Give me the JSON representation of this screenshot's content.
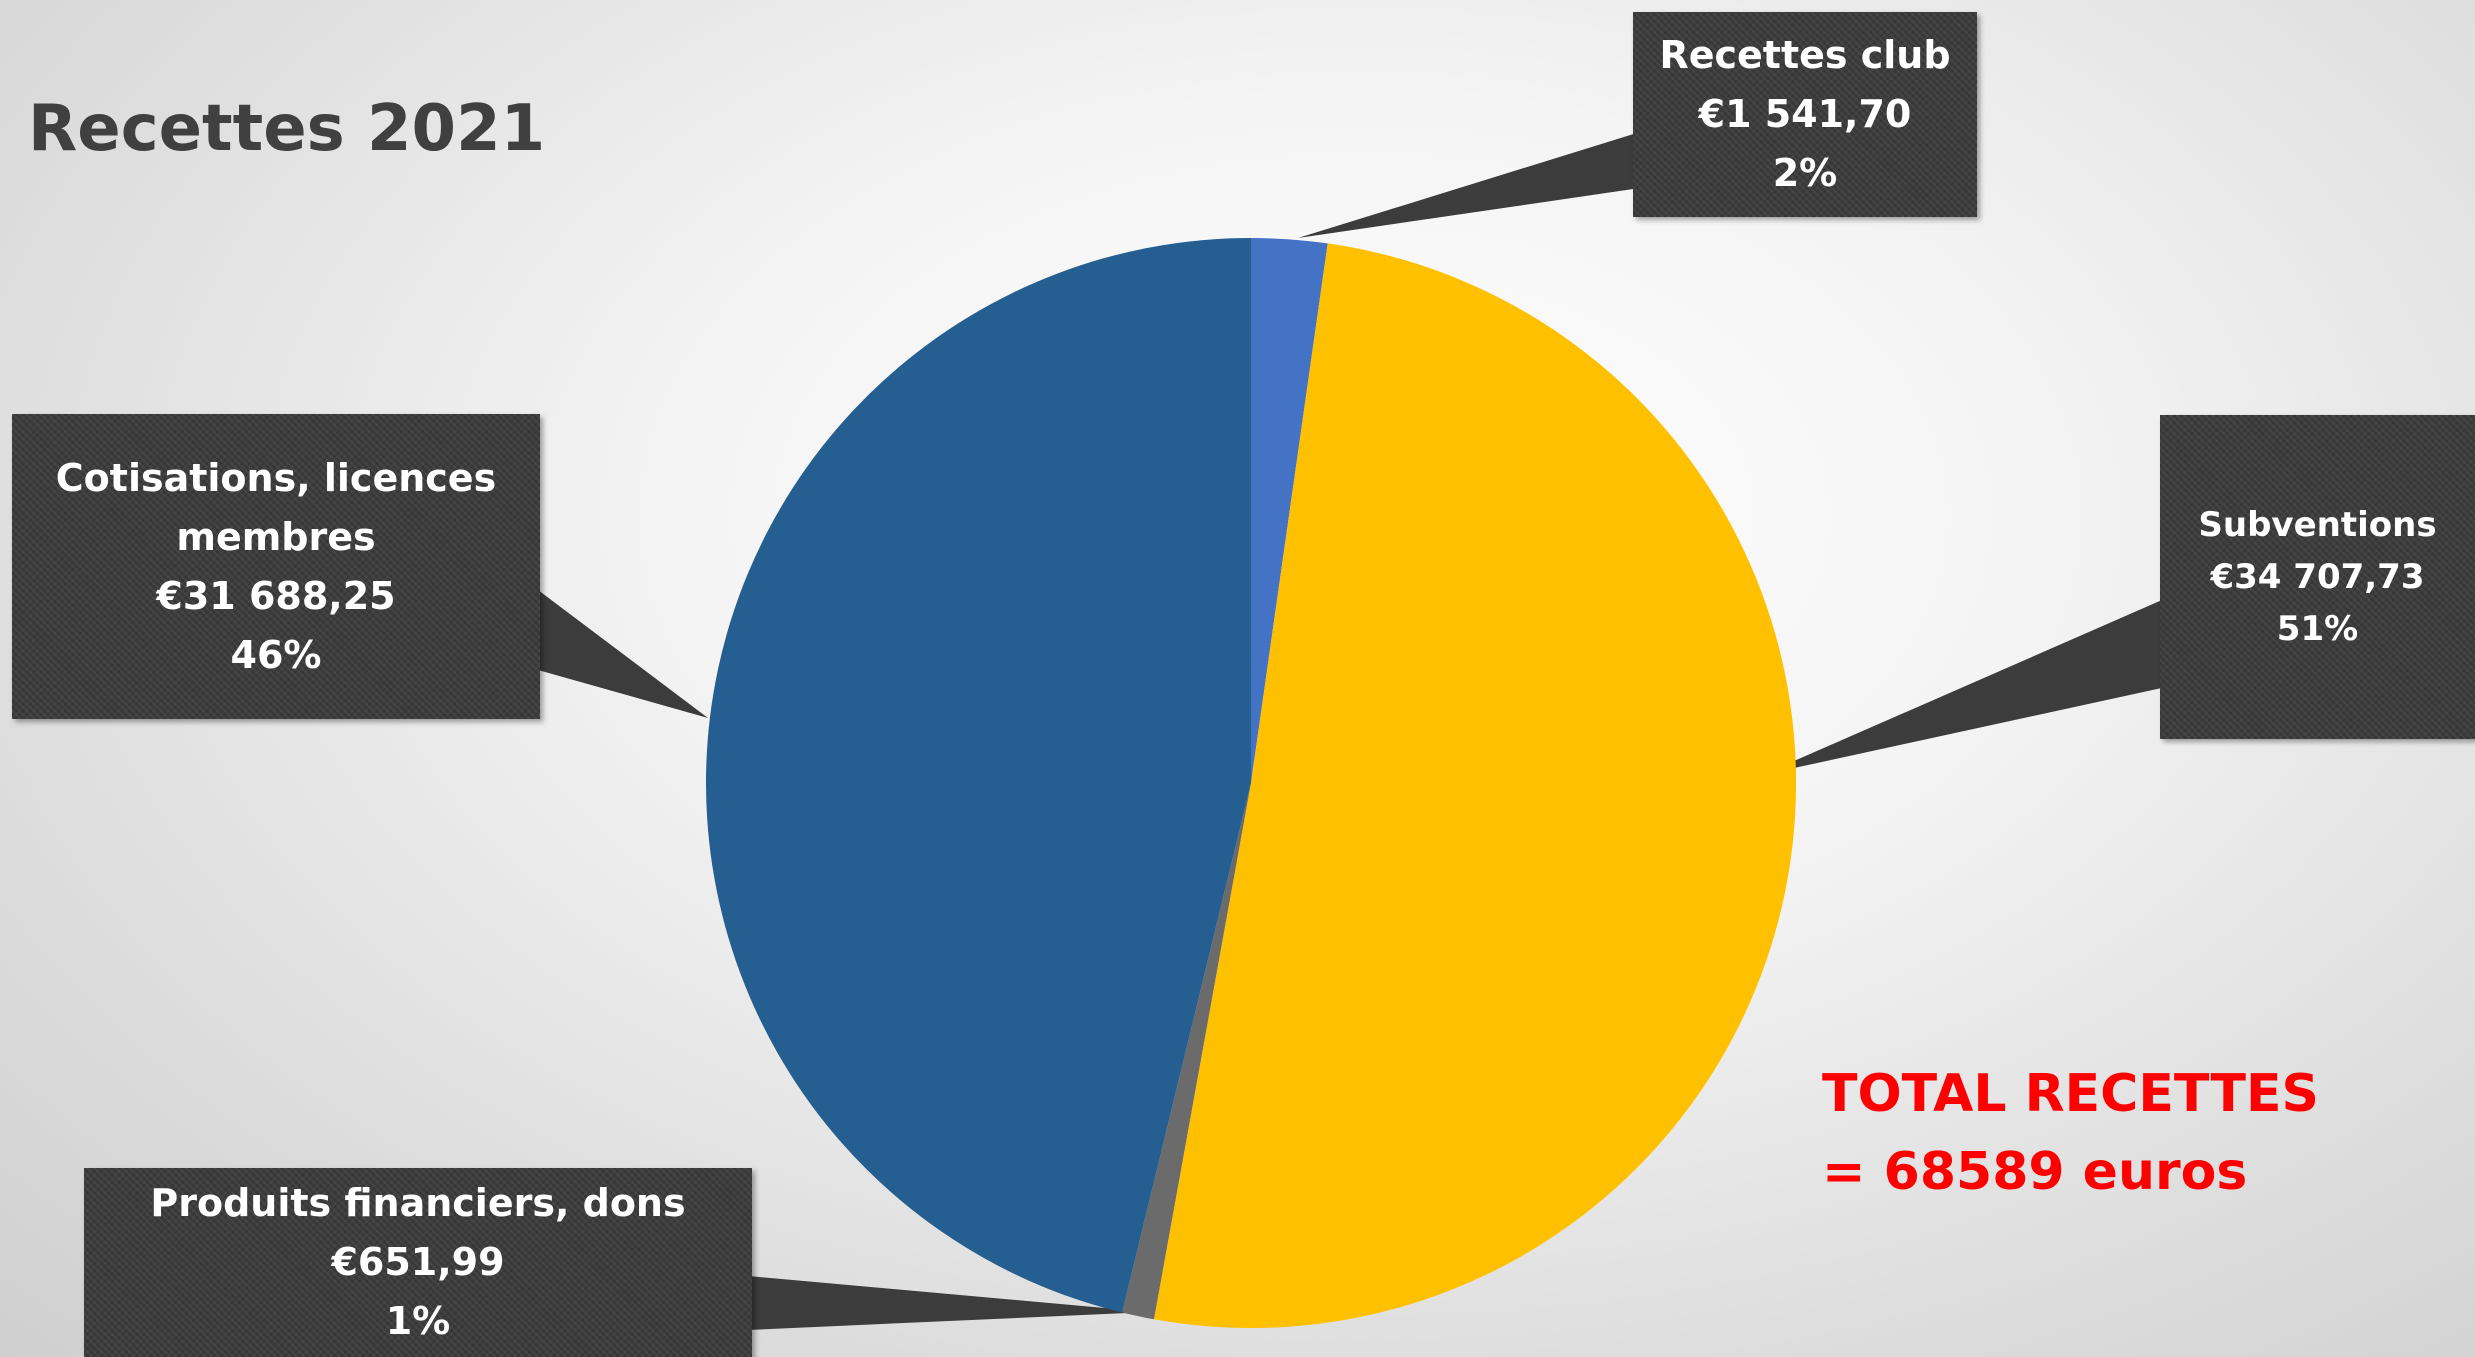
{
  "colors": {
    "recettes_club": "#4472c4",
    "subventions": "#ffc000",
    "produits_financiers": "#6b6b6b",
    "cotisations": "#255e91",
    "total_text": "#ff0000",
    "callout_bg": "#3c3c3c"
  },
  "chart_data": {
    "type": "pie",
    "title": "Recettes 2021",
    "start_angle_deg": 0,
    "direction": "clockwise",
    "slices": [
      {
        "label": "Recettes club",
        "value": 1541.7,
        "value_text": "€1 541,70",
        "percent_text": "2%"
      },
      {
        "label": "Subventions",
        "value": 34707.73,
        "value_text": "€34 707,73",
        "percent_text": "51%"
      },
      {
        "label": "Produits financiers, dons",
        "value": 651.99,
        "value_text": "€651,99",
        "percent_text": "1%"
      },
      {
        "label": "Cotisations, licences membres",
        "value": 31688.25,
        "value_text": "€31 688,25",
        "percent_text": "46%"
      }
    ]
  },
  "annotations": {
    "total_line1": "TOTAL RECETTES",
    "total_line2": "= 68589 euros"
  }
}
